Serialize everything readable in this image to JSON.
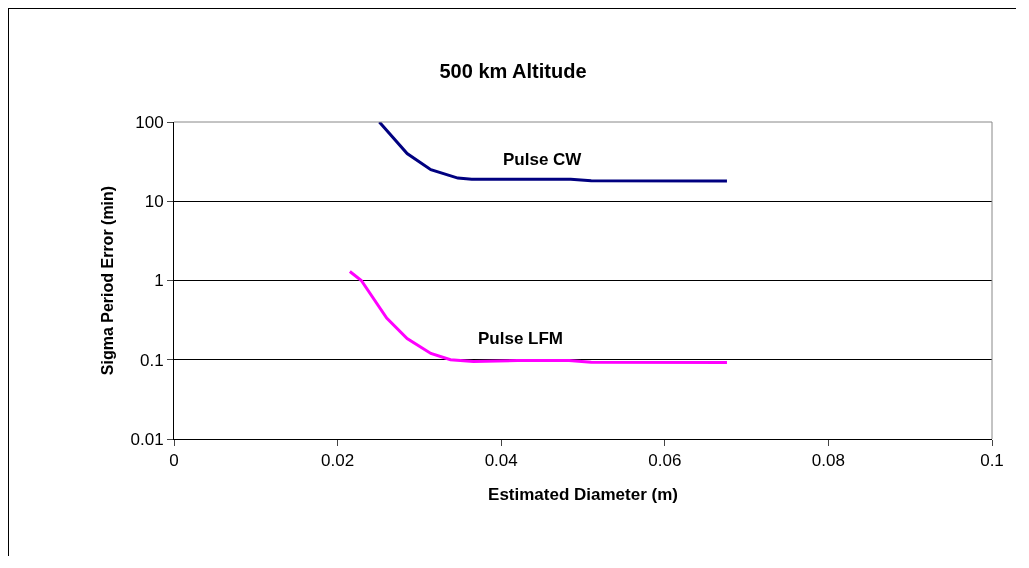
{
  "chart_data": {
    "type": "line",
    "title": "500 km Altitude",
    "xlabel": "Estimated Diameter (m)",
    "ylabel": "Sigma Period Error (min)",
    "series": [
      {
        "name": "Pulse CW",
        "color": "#000080",
        "x": [
          0.0251,
          0.0285,
          0.0314,
          0.0347,
          0.0364,
          0.0485,
          0.051,
          0.0676
        ],
        "values": [
          100,
          40,
          25,
          19.6,
          19,
          19,
          18.2,
          18
        ]
      },
      {
        "name": "Pulse LFM",
        "color": "#ff00ff",
        "x": [
          0.0215,
          0.0229,
          0.026,
          0.0285,
          0.0314,
          0.0338,
          0.0366,
          0.042,
          0.0483,
          0.051,
          0.0676
        ],
        "values": [
          1.3,
          1.0,
          0.335,
          0.185,
          0.12,
          0.1,
          0.095,
          0.098,
          0.098,
          0.093,
          0.092
        ]
      }
    ],
    "log": "y",
    "xlim": [
      0,
      0.1
    ],
    "xticks": [
      0,
      0.02,
      0.04,
      0.06,
      0.08,
      0.1
    ],
    "ylim": [
      0.01,
      100
    ],
    "yticks": [
      0.01,
      0.1,
      1,
      10,
      100
    ],
    "grid": "y",
    "legend": false,
    "marker": "none",
    "line_style": "solid"
  }
}
